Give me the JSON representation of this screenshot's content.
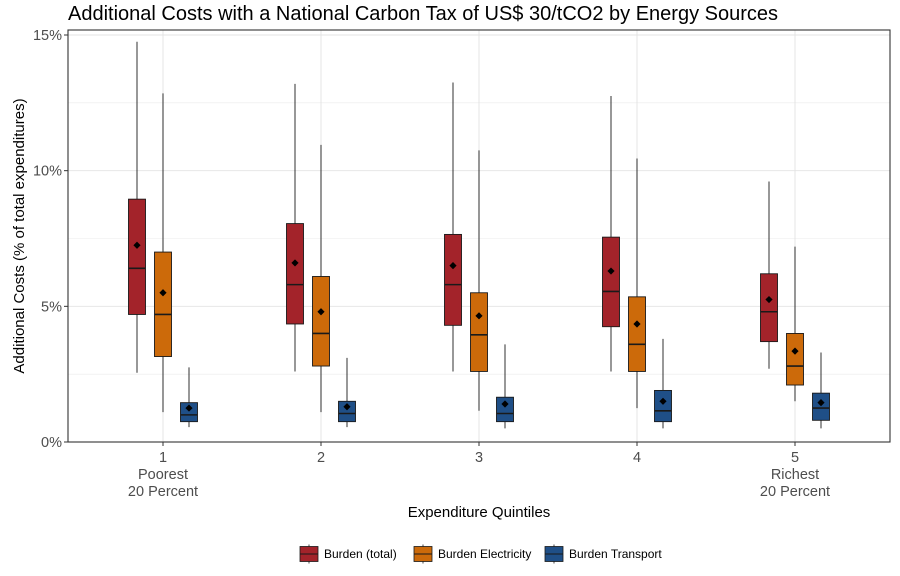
{
  "chart_data": {
    "type": "boxplot",
    "title": "Additional Costs with a National Carbon Tax of US$ 30/tCO2 by Energy Sources",
    "xlabel": "Expenditure Quintiles",
    "ylabel": "Additional Costs (% of total expenditures)",
    "ylim": [
      0,
      15
    ],
    "yticks": [
      "0%",
      "5%",
      "10%",
      "15%"
    ],
    "ytick_values": [
      0,
      5,
      10,
      15
    ],
    "grid": true,
    "legend_position": "bottom",
    "categories": [
      {
        "tick": "1",
        "sub1": "Poorest",
        "sub2": "20 Percent"
      },
      {
        "tick": "2",
        "sub1": "",
        "sub2": ""
      },
      {
        "tick": "3",
        "sub1": "",
        "sub2": ""
      },
      {
        "tick": "4",
        "sub1": "",
        "sub2": ""
      },
      {
        "tick": "5",
        "sub1": "Richest",
        "sub2": "20 Percent"
      }
    ],
    "series": [
      {
        "name": "Burden (total)",
        "color": "#A3232A",
        "boxes": [
          {
            "min": 2.55,
            "q1": 4.7,
            "median": 6.4,
            "q3": 8.95,
            "max": 14.75,
            "mean": 7.25
          },
          {
            "min": 2.6,
            "q1": 4.35,
            "median": 5.8,
            "q3": 8.05,
            "max": 13.2,
            "mean": 6.6
          },
          {
            "min": 2.6,
            "q1": 4.3,
            "median": 5.8,
            "q3": 7.65,
            "max": 13.25,
            "mean": 6.5
          },
          {
            "min": 2.6,
            "q1": 4.25,
            "median": 5.55,
            "q3": 7.55,
            "max": 12.75,
            "mean": 6.3
          },
          {
            "min": 2.7,
            "q1": 3.7,
            "median": 4.8,
            "q3": 6.2,
            "max": 9.6,
            "mean": 5.25
          }
        ]
      },
      {
        "name": "Burden Electricity",
        "color": "#CC6A0A",
        "boxes": [
          {
            "min": 1.1,
            "q1": 3.15,
            "median": 4.7,
            "q3": 7.0,
            "max": 12.85,
            "mean": 5.5
          },
          {
            "min": 1.1,
            "q1": 2.8,
            "median": 4.0,
            "q3": 6.1,
            "max": 10.95,
            "mean": 4.8
          },
          {
            "min": 1.15,
            "q1": 2.6,
            "median": 3.95,
            "q3": 5.5,
            "max": 10.75,
            "mean": 4.65
          },
          {
            "min": 1.25,
            "q1": 2.6,
            "median": 3.6,
            "q3": 5.35,
            "max": 10.45,
            "mean": 4.35
          },
          {
            "min": 1.5,
            "q1": 2.1,
            "median": 2.8,
            "q3": 4.0,
            "max": 7.2,
            "mean": 3.35
          }
        ]
      },
      {
        "name": "Burden Transport",
        "color": "#1F4F87",
        "boxes": [
          {
            "min": 0.55,
            "q1": 0.75,
            "median": 1.0,
            "q3": 1.45,
            "max": 2.75,
            "mean": 1.25
          },
          {
            "min": 0.55,
            "q1": 0.75,
            "median": 1.05,
            "q3": 1.5,
            "max": 3.1,
            "mean": 1.3
          },
          {
            "min": 0.5,
            "q1": 0.75,
            "median": 1.05,
            "q3": 1.65,
            "max": 3.6,
            "mean": 1.4
          },
          {
            "min": 0.5,
            "q1": 0.75,
            "median": 1.15,
            "q3": 1.9,
            "max": 3.8,
            "mean": 1.5
          },
          {
            "min": 0.5,
            "q1": 0.8,
            "median": 1.25,
            "q3": 1.8,
            "max": 3.3,
            "mean": 1.45
          }
        ]
      }
    ]
  }
}
